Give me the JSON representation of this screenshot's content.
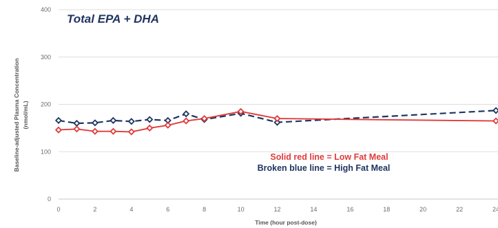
{
  "chart_data": {
    "type": "line",
    "title": "Total EPA + DHA",
    "xlabel": "Time (hour post-dose)",
    "ylabel": "Baseline-adjusted Plasma Concentration",
    "ylabel_unit": "(nmol/mL)",
    "xlim": [
      0,
      24
    ],
    "ylim": [
      0,
      400
    ],
    "x_ticks": [
      "0",
      "2",
      "4",
      "6",
      "8",
      "10",
      "12",
      "14",
      "16",
      "18",
      "20",
      "22",
      "24"
    ],
    "y_ticks": [
      "0",
      "100",
      "200",
      "300",
      "400"
    ],
    "grid": "horizontal",
    "series": [
      {
        "name": "Low Fat Meal",
        "line_style": "solid",
        "color": "#e03b3b",
        "x": [
          0,
          1,
          2,
          3,
          4,
          5,
          6,
          7,
          8,
          10,
          12,
          24
        ],
        "y": [
          146,
          148,
          143,
          143,
          142,
          150,
          156,
          165,
          170,
          185,
          170,
          165
        ]
      },
      {
        "name": "High Fat Meal",
        "line_style": "dashed",
        "color": "#1f3560",
        "x": [
          0,
          1,
          2,
          3,
          4,
          5,
          6,
          7,
          8,
          10,
          12,
          24
        ],
        "y": [
          166,
          160,
          161,
          166,
          164,
          168,
          166,
          180,
          168,
          181,
          162,
          187
        ]
      }
    ],
    "annotations": [
      {
        "text": "Solid red line = Low Fat Meal",
        "color": "#e03b3b"
      },
      {
        "text": "Broken blue line = High Fat Meal",
        "color": "#1f3560"
      }
    ]
  }
}
